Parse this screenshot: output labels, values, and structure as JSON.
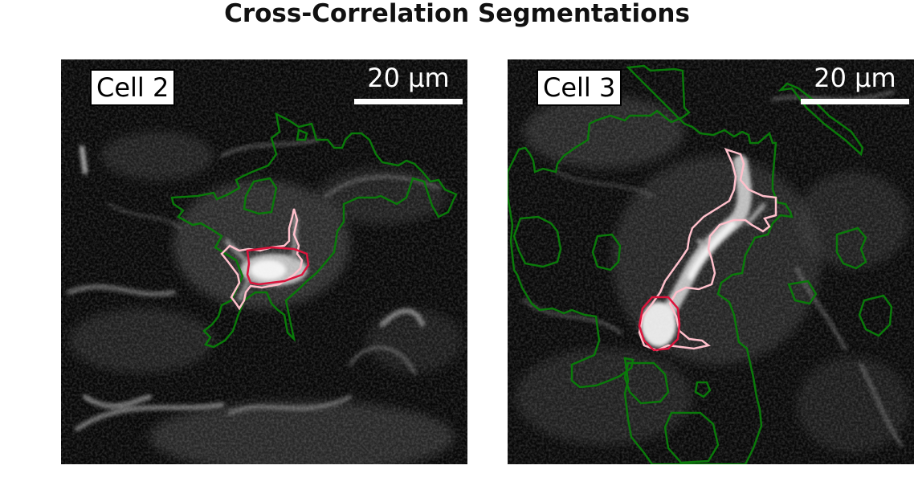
{
  "figure": {
    "title": "Cross-Correlation Segmentations"
  },
  "colors": {
    "background": "#050505",
    "outer_contour": "#0a7a0a",
    "process_contour": "#ffc0cb",
    "soma_contour": "#dc143c",
    "annotation_text": "#ffffff"
  },
  "panels": [
    {
      "label": "Cell 2",
      "scale_label": "20 μm"
    },
    {
      "label": "Cell 3",
      "scale_label": "20 μm"
    }
  ]
}
